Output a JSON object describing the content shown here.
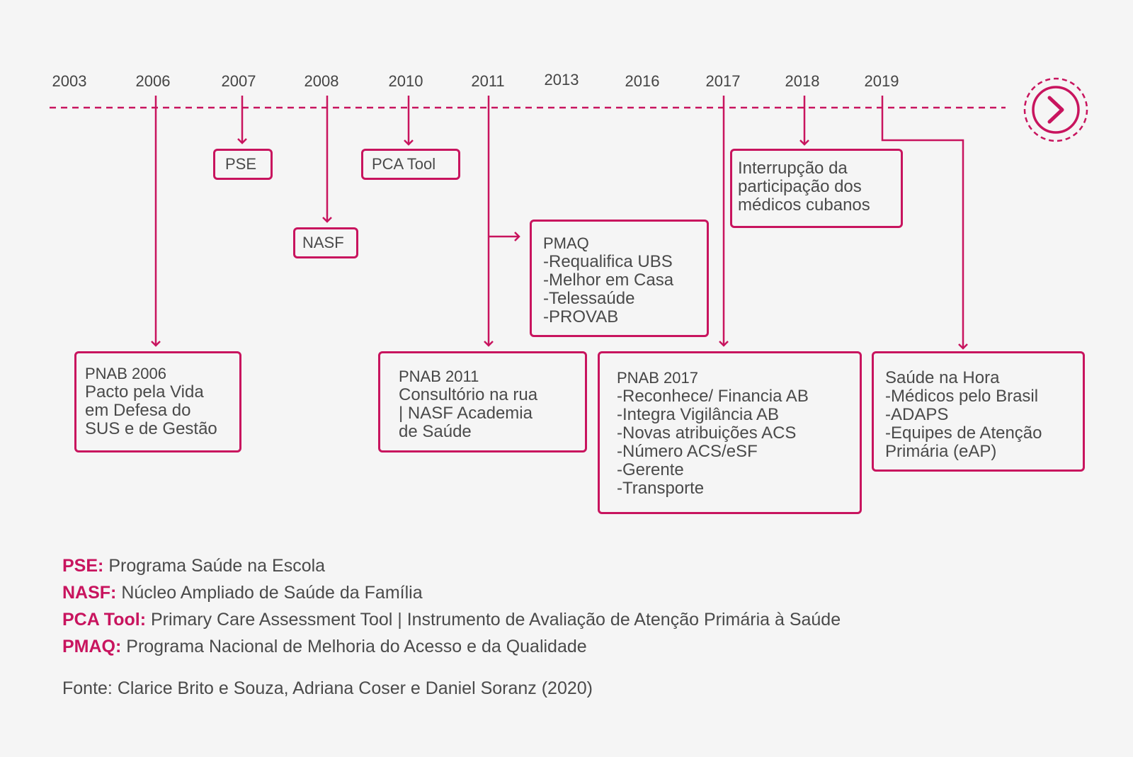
{
  "colors": {
    "accent": "#c8145e",
    "text": "#4a4a4a",
    "background": "#f5f5f5"
  },
  "timeline": {
    "years": [
      "2003",
      "2006",
      "2007",
      "2008",
      "2010",
      "2011",
      "2013",
      "2016",
      "2017",
      "2018",
      "2019"
    ],
    "end_icon": "chevron-right-circle-icon"
  },
  "events": {
    "pse": {
      "title": "PSE"
    },
    "nasf": {
      "title": "NASF"
    },
    "pca_tool": {
      "title": "PCA Tool"
    },
    "pnab2006": {
      "title": "PNAB 2006",
      "lines": [
        "Pacto pela Vida",
        "em Defesa do",
        "SUS e de Gestão"
      ]
    },
    "pnab2011": {
      "title": "PNAB 2011",
      "lines": [
        "Consultório na rua",
        "| NASF Academia",
        "de Saúde"
      ]
    },
    "pmaq": {
      "title": "PMAQ",
      "lines": [
        "-Requalifica UBS",
        "-Melhor em Casa",
        "-Telessaúde",
        "-PROVAB"
      ]
    },
    "pnab2017": {
      "title": "PNAB 2017",
      "lines": [
        "-Reconhece/ Financia AB",
        "-Integra Vigilância AB",
        "-Novas atribuições ACS",
        "-Número ACS/eSF",
        "-Gerente",
        "-Transporte"
      ]
    },
    "interrupcao": {
      "lines": [
        "Interrupção da",
        "participação dos",
        "médicos cubanos"
      ]
    },
    "saude_hora": {
      "lines": [
        "Saúde na Hora",
        "-Médicos pelo Brasil",
        "-ADAPS",
        "-Equipes de Atenção",
        "Primária (eAP)"
      ]
    }
  },
  "legend": [
    {
      "abbr": "PSE:",
      "text": "Programa Saúde na Escola"
    },
    {
      "abbr": "NASF:",
      "text": "Núcleo Ampliado de Saúde da Família"
    },
    {
      "abbr": "PCA Tool:",
      "text": "Primary Care Assessment Tool | Instrumento de Avaliação de Atenção Primária à Saúde"
    },
    {
      "abbr": "PMAQ:",
      "text": "Programa Nacional de Melhoria do Acesso e da Qualidade"
    }
  ],
  "source": "Fonte: Clarice Brito e Souza, Adriana Coser e Daniel Soranz (2020)"
}
